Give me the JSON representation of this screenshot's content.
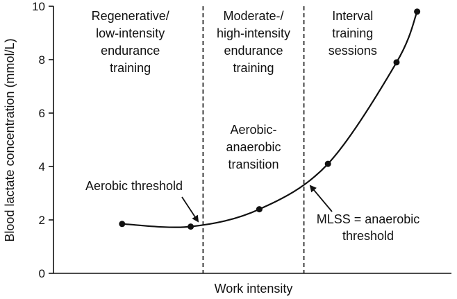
{
  "chart_data": {
    "type": "line",
    "title": "",
    "xlabel": "Work intensity",
    "ylabel": "Blood lactate concentration (mmol/L)",
    "ylim": [
      0,
      10
    ],
    "yticks": [
      0,
      2,
      4,
      6,
      8,
      10
    ],
    "x_ticks_shown": false,
    "grid": false,
    "series": [
      {
        "values": [
          {
            "x": 1.0,
            "y": 1.85
          },
          {
            "x": 2.0,
            "y": 1.75
          },
          {
            "x": 3.0,
            "y": 2.4
          },
          {
            "x": 4.0,
            "y": 4.1
          },
          {
            "x": 5.0,
            "y": 7.9
          },
          {
            "x": 5.3,
            "y": 9.8
          }
        ]
      }
    ],
    "xlim": [
      0,
      5.8
    ],
    "thresholds": [
      {
        "x": 2.18,
        "label": "Aerobic threshold"
      },
      {
        "x": 3.65,
        "label": "MLSS = anaerobic threshold"
      }
    ],
    "zones": [
      {
        "lines": [
          "Regenerative/",
          "low-intensity",
          "endurance",
          "training"
        ]
      },
      {
        "lines": [
          "Moderate-/",
          "high-intensity",
          "endurance",
          "training"
        ]
      },
      {
        "lines": [
          "Interval",
          "training",
          "sessions"
        ]
      }
    ],
    "transition_label": [
      "Aerobic-",
      "anaerobic",
      "transition"
    ],
    "aerobic_threshold_label": "Aerobic threshold",
    "mlss_label": [
      "MLSS = anaerobic",
      "threshold"
    ]
  }
}
